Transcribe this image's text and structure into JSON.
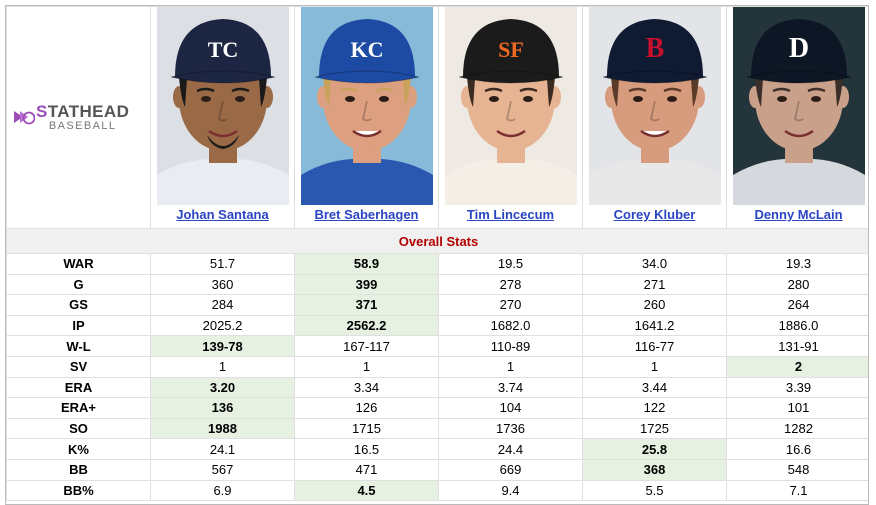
{
  "logo": {
    "brand_s": "S",
    "brand_rest": "TATHEAD",
    "sub": "BASEBALL"
  },
  "players": [
    {
      "name": "Johan Santana",
      "cap_letter": "TC",
      "cap_color": "#1c2541",
      "skin": "#9a6a47",
      "hair": "#1a1a1a",
      "jersey": "#e9ecf2",
      "bg": "#dcdfe3"
    },
    {
      "name": "Bret Saberhagen",
      "cap_letter": "KC",
      "cap_color": "#1d4aa3",
      "skin": "#dc9f80",
      "hair": "#c9a35c",
      "jersey": "#2a57b0",
      "bg": "#87b9d9"
    },
    {
      "name": "Tim Lincecum",
      "cap_letter": "SF",
      "cap_color": "#1b1b1b",
      "skin": "#e6b492",
      "hair": "#3b2a1f",
      "jersey": "#f4efe6",
      "bg": "#eeeae3"
    },
    {
      "name": "Corey Kluber",
      "cap_letter": "B",
      "cap_color": "#0f1a33",
      "skin": "#d79b7d",
      "hair": "#5a3a29",
      "jersey": "#e8e8e8",
      "bg": "#e2e4e7"
    },
    {
      "name": "Denny McLain",
      "cap_letter": "D",
      "cap_color": "#0d1624",
      "skin": "#c9a08a",
      "hair": "#3b2f29",
      "jersey": "#d5d8dc",
      "bg": "#24343b"
    }
  ],
  "section_title": "Overall Stats",
  "rows": [
    {
      "label": "WAR",
      "values": [
        "51.7",
        "58.9",
        "19.5",
        "34.0",
        "19.3"
      ],
      "best": 1
    },
    {
      "label": "G",
      "values": [
        "360",
        "399",
        "278",
        "271",
        "280"
      ],
      "best": 1
    },
    {
      "label": "GS",
      "values": [
        "284",
        "371",
        "270",
        "260",
        "264"
      ],
      "best": 1
    },
    {
      "label": "IP",
      "values": [
        "2025.2",
        "2562.2",
        "1682.0",
        "1641.2",
        "1886.0"
      ],
      "best": 1
    },
    {
      "label": "W-L",
      "values": [
        "139-78",
        "167-117",
        "110-89",
        "116-77",
        "131-91"
      ],
      "best": 0
    },
    {
      "label": "SV",
      "values": [
        "1",
        "1",
        "1",
        "1",
        "2"
      ],
      "best": 4
    },
    {
      "label": "ERA",
      "values": [
        "3.20",
        "3.34",
        "3.74",
        "3.44",
        "3.39"
      ],
      "best": 0
    },
    {
      "label": "ERA+",
      "values": [
        "136",
        "126",
        "104",
        "122",
        "101"
      ],
      "best": 0
    },
    {
      "label": "SO",
      "values": [
        "1988",
        "1715",
        "1736",
        "1725",
        "1282"
      ],
      "best": 0
    },
    {
      "label": "K%",
      "values": [
        "24.1",
        "16.5",
        "24.4",
        "25.8",
        "16.6"
      ],
      "best": 3
    },
    {
      "label": "BB",
      "values": [
        "567",
        "471",
        "669",
        "368",
        "548"
      ],
      "best": 3
    },
    {
      "label": "BB%",
      "values": [
        "6.9",
        "4.5",
        "9.4",
        "5.5",
        "7.1"
      ],
      "best": 1
    }
  ],
  "colors": {
    "highlight": "#e6f1e1",
    "section_text": "#b30000",
    "link": "#2a45c4",
    "brand": "#9d4db8"
  }
}
